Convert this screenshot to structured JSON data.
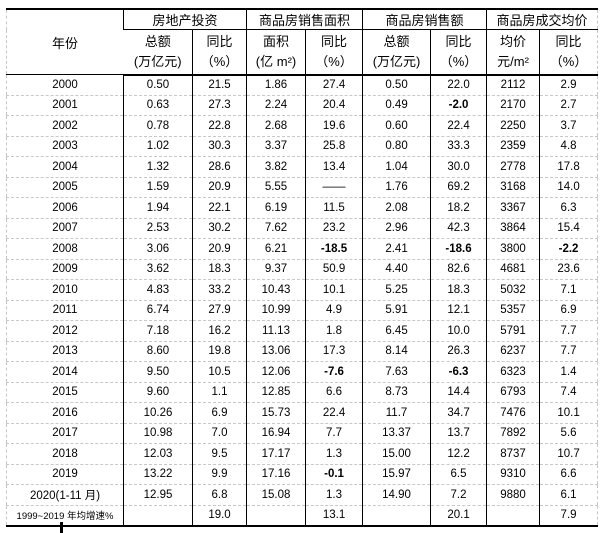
{
  "colors": {
    "grid_line": "#000000",
    "row_divider": "#c8c8c8",
    "text": "#000000",
    "background": "#ffffff"
  },
  "table": {
    "year_col_header": "年份",
    "col_groups": [
      {
        "label": "房地产投资",
        "subcols": [
          [
            "总额",
            "(万亿元)"
          ],
          [
            "同比",
            "（%）"
          ]
        ]
      },
      {
        "label": "商品房销售面积",
        "subcols": [
          [
            "面积",
            "(亿 m²)"
          ],
          [
            "同比",
            "（%）"
          ]
        ]
      },
      {
        "label": "商品房销售额",
        "subcols": [
          [
            "总额",
            "(万亿元)"
          ],
          [
            "同比",
            "（%）"
          ]
        ]
      },
      {
        "label": "商品房成交均价",
        "subcols": [
          [
            "均价",
            "元/m²"
          ],
          [
            "同比",
            "（%）"
          ]
        ]
      }
    ],
    "rows": [
      {
        "year": "2000",
        "cells": [
          "0.50",
          "21.5",
          "1.86",
          "27.4",
          "0.50",
          "22.0",
          "2112",
          "2.9"
        ]
      },
      {
        "year": "2001",
        "cells": [
          "0.63",
          "27.3",
          "2.24",
          "20.4",
          "0.49",
          "-2.0",
          "2170",
          "2.7"
        ]
      },
      {
        "year": "2002",
        "cells": [
          "0.78",
          "22.8",
          "2.68",
          "19.6",
          "0.60",
          "22.4",
          "2250",
          "3.7"
        ]
      },
      {
        "year": "2003",
        "cells": [
          "1.02",
          "30.3",
          "3.37",
          "25.8",
          "0.80",
          "33.3",
          "2359",
          "4.8"
        ]
      },
      {
        "year": "2004",
        "cells": [
          "1.32",
          "28.6",
          "3.82",
          "13.4",
          "1.04",
          "30.0",
          "2778",
          "17.8"
        ]
      },
      {
        "year": "2005",
        "cells": [
          "1.59",
          "20.9",
          "5.55",
          "——",
          "1.76",
          "69.2",
          "3168",
          "14.0"
        ]
      },
      {
        "year": "2006",
        "cells": [
          "1.94",
          "22.1",
          "6.19",
          "11.5",
          "2.08",
          "18.2",
          "3367",
          "6.3"
        ]
      },
      {
        "year": "2007",
        "cells": [
          "2.53",
          "30.2",
          "7.62",
          "23.2",
          "2.96",
          "42.3",
          "3864",
          "15.4"
        ]
      },
      {
        "year": "2008",
        "cells": [
          "3.06",
          "20.9",
          "6.21",
          "-18.5",
          "2.41",
          "-18.6",
          "3800",
          "-2.2"
        ]
      },
      {
        "year": "2009",
        "cells": [
          "3.62",
          "18.3",
          "9.37",
          "50.9",
          "4.40",
          "82.6",
          "4681",
          "23.6"
        ]
      },
      {
        "year": "2010",
        "cells": [
          "4.83",
          "33.2",
          "10.43",
          "10.1",
          "5.25",
          "18.3",
          "5032",
          "7.1"
        ]
      },
      {
        "year": "2011",
        "cells": [
          "6.74",
          "27.9",
          "10.99",
          "4.9",
          "5.91",
          "12.1",
          "5357",
          "6.9"
        ]
      },
      {
        "year": "2012",
        "cells": [
          "7.18",
          "16.2",
          "11.13",
          "1.8",
          "6.45",
          "10.0",
          "5791",
          "7.7"
        ]
      },
      {
        "year": "2013",
        "cells": [
          "8.60",
          "19.8",
          "13.06",
          "17.3",
          "8.14",
          "26.3",
          "6237",
          "7.7"
        ]
      },
      {
        "year": "2014",
        "cells": [
          "9.50",
          "10.5",
          "12.06",
          "-7.6",
          "7.63",
          "-6.3",
          "6323",
          "1.4"
        ]
      },
      {
        "year": "2015",
        "cells": [
          "9.60",
          "1.1",
          "12.85",
          "6.6",
          "8.73",
          "14.4",
          "6793",
          "7.4"
        ]
      },
      {
        "year": "2016",
        "cells": [
          "10.26",
          "6.9",
          "15.73",
          "22.4",
          "11.7",
          "34.7",
          "7476",
          "10.1"
        ]
      },
      {
        "year": "2017",
        "cells": [
          "10.98",
          "7.0",
          "16.94",
          "7.7",
          "13.37",
          "13.7",
          "7892",
          "5.6"
        ]
      },
      {
        "year": "2018",
        "cells": [
          "12.03",
          "9.5",
          "17.17",
          "1.3",
          "15.00",
          "12.2",
          "8737",
          "10.7"
        ]
      },
      {
        "year": "2019",
        "cells": [
          "13.22",
          "9.9",
          "17.16",
          "-0.1",
          "15.97",
          "6.5",
          "9310",
          "6.6"
        ]
      },
      {
        "year": "2020(1-11 月)",
        "cells": [
          "12.95",
          "6.8",
          "15.08",
          "1.3",
          "14.90",
          "7.2",
          "9880",
          "6.1"
        ]
      }
    ],
    "summary_row": {
      "label": "1999~2019 年均增速%",
      "cells": [
        "",
        "19.0",
        "",
        "13.1",
        "",
        "20.1",
        "",
        "7.9"
      ]
    }
  }
}
